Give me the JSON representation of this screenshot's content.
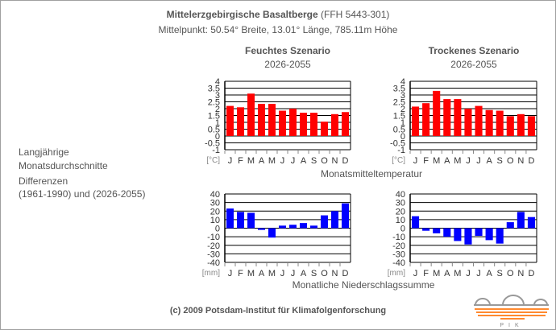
{
  "header": {
    "title_bold": "Mittelerzgebirgische Basaltberge",
    "title_code": "(FFH 5443-301)",
    "subtitle": "Mittelpunkt: 50.54° Breite, 13.01° Länge, 785.11m Höhe"
  },
  "scenarios": [
    {
      "name": "Feuchtes Szenario",
      "period": "2026-2055"
    },
    {
      "name": "Trockenes Szenario",
      "period": "2026-2055"
    }
  ],
  "left_labels": {
    "line1": "Langjährige",
    "line2": "Monatsdurchschnitte",
    "line3": "Differenzen",
    "line4": "(1961-1990) und (2026-2055)"
  },
  "footer": {
    "copyright": "(c) 2009 Potsdam-Institut für Klimafolgenforschung",
    "logo_text": "PIK"
  },
  "colors": {
    "temp": "#ff0000",
    "precip": "#0000ff",
    "grid": "#000000"
  },
  "chart_data": [
    {
      "type": "bar",
      "title": "Monatsmitteltemperatur",
      "scenario": "Feuchtes Szenario",
      "unit": "[°C]",
      "categories": [
        "J",
        "F",
        "M",
        "A",
        "M",
        "J",
        "J",
        "A",
        "S",
        "O",
        "N",
        "D"
      ],
      "values": [
        2.2,
        2.1,
        3.1,
        2.35,
        2.35,
        1.85,
        2.0,
        1.7,
        1.7,
        1.05,
        1.6,
        1.75
      ],
      "ylim": [
        -1,
        4
      ],
      "yticks": [
        "4",
        "3.5",
        "3",
        "2.5",
        "2",
        "1.5",
        "1",
        "0.5",
        "0",
        "-0.5",
        "-1"
      ],
      "grid": true
    },
    {
      "type": "bar",
      "title": "Monatsmitteltemperatur",
      "scenario": "Trockenes Szenario",
      "unit": "[°C]",
      "categories": [
        "J",
        "F",
        "M",
        "A",
        "M",
        "J",
        "J",
        "A",
        "S",
        "O",
        "N",
        "D"
      ],
      "values": [
        2.15,
        2.4,
        3.3,
        2.7,
        2.7,
        2.0,
        2.2,
        1.9,
        1.85,
        1.45,
        1.6,
        1.45
      ],
      "ylim": [
        -1,
        4
      ],
      "yticks": [
        "4",
        "3.5",
        "3",
        "2.5",
        "2",
        "1.5",
        "1",
        "0.5",
        "0",
        "-0.5",
        "-1"
      ],
      "grid": true
    },
    {
      "type": "bar",
      "title": "Monatliche Niederschlagssumme",
      "scenario": "Feuchtes Szenario",
      "unit": "[mm]",
      "categories": [
        "J",
        "F",
        "M",
        "A",
        "M",
        "J",
        "J",
        "A",
        "S",
        "O",
        "N",
        "D"
      ],
      "values": [
        23,
        19,
        18,
        -2,
        -11,
        3,
        4,
        6,
        3,
        15,
        20,
        29
      ],
      "ylim": [
        -40,
        40
      ],
      "yticks": [
        "40",
        "30",
        "20",
        "10",
        "0",
        "-10",
        "-20",
        "-30",
        "-40"
      ],
      "grid": true
    },
    {
      "type": "bar",
      "title": "Monatliche Niederschlagssumme",
      "scenario": "Trockenes Szenario",
      "unit": "[mm]",
      "categories": [
        "J",
        "F",
        "M",
        "A",
        "M",
        "J",
        "J",
        "A",
        "S",
        "O",
        "N",
        "D"
      ],
      "values": [
        14,
        -3,
        -6,
        -10,
        -15,
        -19,
        -9,
        -14,
        -18,
        7,
        19,
        13
      ],
      "ylim": [
        -40,
        40
      ],
      "yticks": [
        "40",
        "30",
        "20",
        "10",
        "0",
        "-10",
        "-20",
        "-30",
        "-40"
      ],
      "grid": true
    }
  ]
}
